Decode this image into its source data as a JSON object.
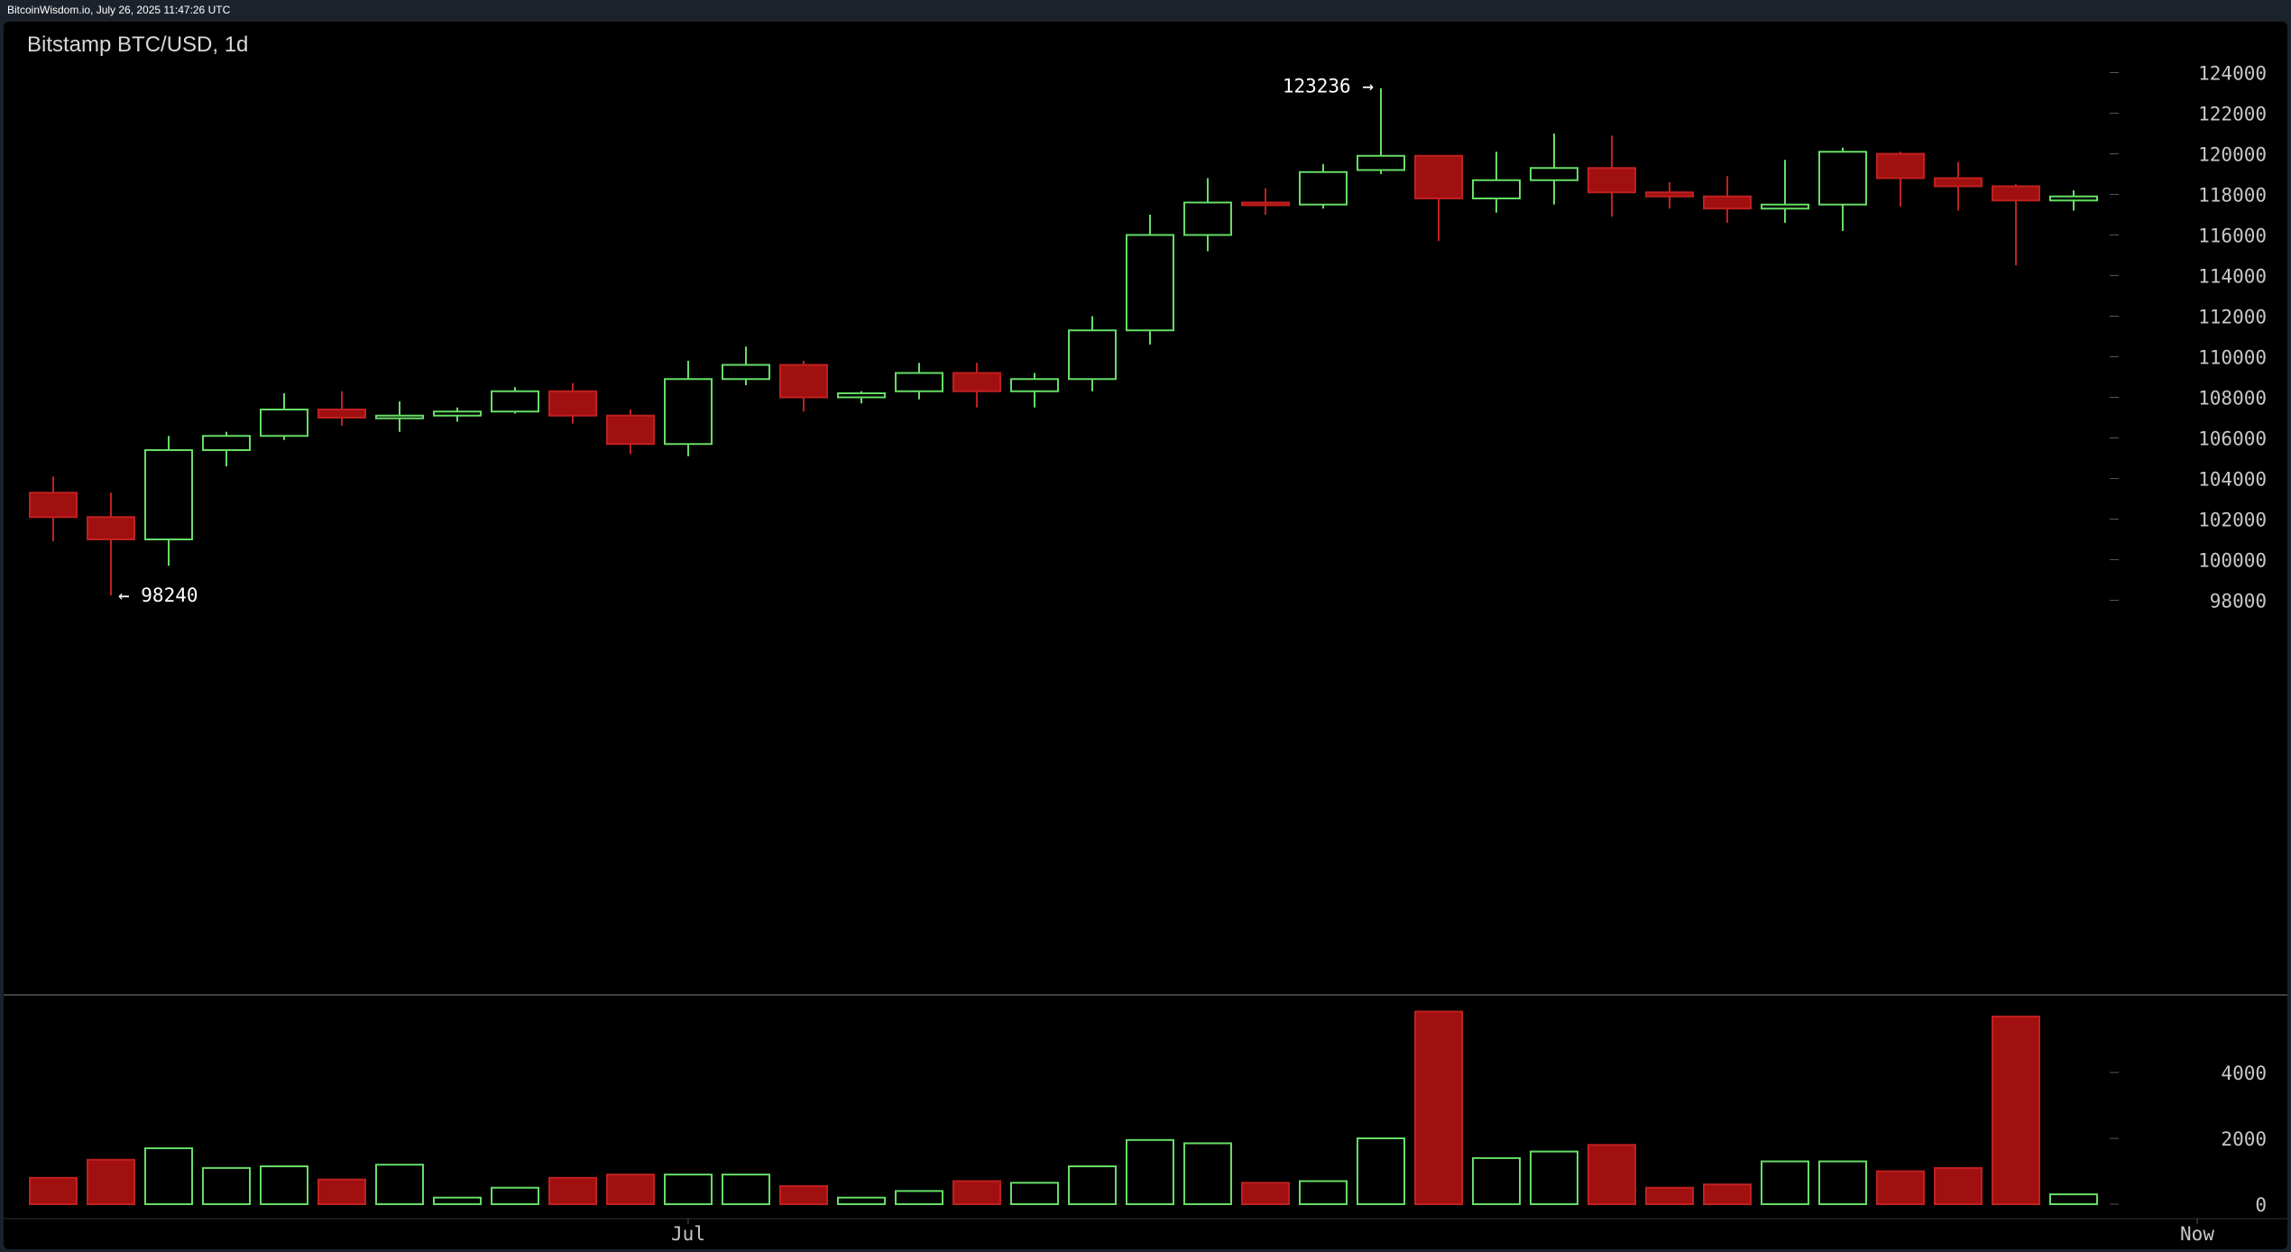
{
  "header": {
    "text": "BitcoinWisdom.io, July 26, 2025 11:47:26 UTC"
  },
  "chart_title": "Bitstamp BTC/USD, 1d",
  "colors": {
    "background": "#000000",
    "up": "#66dd66",
    "down": "#a11010",
    "down_border": "#c02020",
    "grid_tick": "#555555",
    "axis_text": "#c8c8c8",
    "separator": "#555555"
  },
  "chart_data": [
    {
      "type": "candlestick",
      "title": "Bitstamp BTC/USD, 1d",
      "price_axis": {
        "position": "right",
        "range": [
          96000,
          125000
        ],
        "ticks": [
          98000,
          100000,
          102000,
          104000,
          106000,
          108000,
          110000,
          112000,
          114000,
          116000,
          118000,
          120000,
          122000,
          124000
        ],
        "tick_labels": [
          "98000",
          "100000",
          "102000",
          "104000",
          "106000",
          "108000",
          "110000",
          "112000",
          "114000",
          "116000",
          "118000",
          "120000",
          "122000",
          "124000"
        ]
      },
      "time_axis": {
        "labels": [
          {
            "text": "Jul",
            "candle_index": 11
          },
          {
            "text": "Now",
            "candle_index": 36
          }
        ]
      },
      "annotations": [
        {
          "text": "123236 →",
          "price": 123236,
          "candle_index": 23,
          "side": "left"
        },
        {
          "text": "← 98240",
          "price": 98240,
          "candle_index": 1,
          "side": "right"
        }
      ],
      "candles": [
        {
          "open": 103300,
          "high": 104100,
          "low": 100900,
          "close": 102100
        },
        {
          "open": 102100,
          "high": 103300,
          "low": 98240,
          "close": 101000
        },
        {
          "open": 101000,
          "high": 106100,
          "low": 99700,
          "close": 105400
        },
        {
          "open": 105400,
          "high": 106300,
          "low": 104600,
          "close": 106100
        },
        {
          "open": 106100,
          "high": 108200,
          "low": 105900,
          "close": 107400
        },
        {
          "open": 107400,
          "high": 108300,
          "low": 106600,
          "close": 107000
        },
        {
          "open": 107000,
          "high": 107800,
          "low": 106300,
          "close": 107100
        },
        {
          "open": 107100,
          "high": 107500,
          "low": 106800,
          "close": 107300
        },
        {
          "open": 107300,
          "high": 108500,
          "low": 107200,
          "close": 108300
        },
        {
          "open": 108300,
          "high": 108700,
          "low": 106700,
          "close": 107100
        },
        {
          "open": 107100,
          "high": 107400,
          "low": 105200,
          "close": 105700
        },
        {
          "open": 105700,
          "high": 109800,
          "low": 105100,
          "close": 108900
        },
        {
          "open": 108900,
          "high": 110500,
          "low": 108600,
          "close": 109600
        },
        {
          "open": 109600,
          "high": 109800,
          "low": 107300,
          "close": 108000
        },
        {
          "open": 108000,
          "high": 108300,
          "low": 107700,
          "close": 108200
        },
        {
          "open": 108300,
          "high": 109700,
          "low": 107900,
          "close": 109200
        },
        {
          "open": 109200,
          "high": 109700,
          "low": 107500,
          "close": 108300
        },
        {
          "open": 108300,
          "high": 109200,
          "low": 107500,
          "close": 108900
        },
        {
          "open": 108900,
          "high": 112000,
          "low": 108300,
          "close": 111300
        },
        {
          "open": 111300,
          "high": 117000,
          "low": 110600,
          "close": 116000
        },
        {
          "open": 116000,
          "high": 118800,
          "low": 115200,
          "close": 117600
        },
        {
          "open": 117600,
          "high": 118300,
          "low": 117000,
          "close": 117500
        },
        {
          "open": 117500,
          "high": 119500,
          "low": 117300,
          "close": 119100
        },
        {
          "open": 119200,
          "high": 123236,
          "low": 119000,
          "close": 119900
        },
        {
          "open": 119900,
          "high": 119900,
          "low": 115700,
          "close": 117800
        },
        {
          "open": 117800,
          "high": 120100,
          "low": 117100,
          "close": 118700
        },
        {
          "open": 118700,
          "high": 121000,
          "low": 117500,
          "close": 119300
        },
        {
          "open": 119300,
          "high": 120900,
          "low": 116900,
          "close": 118100
        },
        {
          "open": 118100,
          "high": 118600,
          "low": 117300,
          "close": 117900
        },
        {
          "open": 117900,
          "high": 118900,
          "low": 116600,
          "close": 117300
        },
        {
          "open": 117300,
          "high": 119700,
          "low": 116600,
          "close": 117500
        },
        {
          "open": 117500,
          "high": 120300,
          "low": 116200,
          "close": 120100
        },
        {
          "open": 120000,
          "high": 120100,
          "low": 117400,
          "close": 118800
        },
        {
          "open": 118800,
          "high": 119600,
          "low": 117200,
          "close": 118400
        },
        {
          "open": 118400,
          "high": 118500,
          "low": 114500,
          "close": 117700
        },
        {
          "open": 117700,
          "high": 118200,
          "low": 117200,
          "close": 117900
        }
      ]
    },
    {
      "type": "bar",
      "title": "",
      "value_axis": {
        "position": "right",
        "range": [
          0,
          6000
        ],
        "ticks": [
          0,
          2000,
          4000
        ],
        "tick_labels": [
          "0",
          "2000",
          "4000"
        ]
      },
      "values": [
        800,
        1350,
        1700,
        1100,
        1150,
        750,
        1200,
        200,
        500,
        800,
        900,
        900,
        900,
        550,
        200,
        400,
        700,
        650,
        1150,
        1950,
        1850,
        650,
        700,
        2000,
        5850,
        1400,
        1600,
        1800,
        500,
        600,
        1300,
        1300,
        1000,
        1100,
        5700,
        300
      ]
    }
  ]
}
